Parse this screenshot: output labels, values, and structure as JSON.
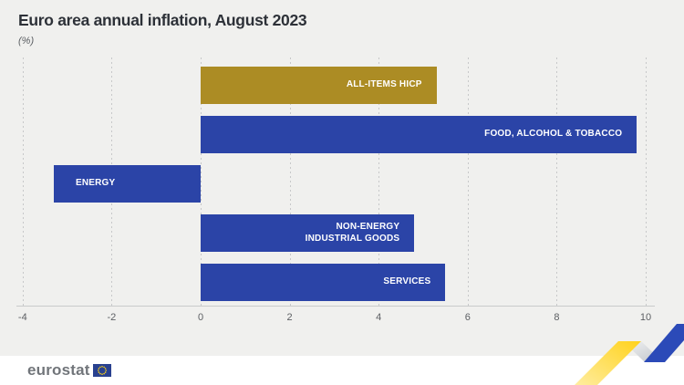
{
  "header": {
    "title": "Euro area annual inflation, August 2023",
    "subtitle": "(%)"
  },
  "chart_data": {
    "type": "bar",
    "orientation": "horizontal",
    "title": "Euro area annual inflation, August 2023",
    "unit_label": "(%)",
    "categories": [
      "ALL-ITEMS HICP",
      "FOOD, ALCOHOL & TOBACCO",
      "ENERGY",
      "NON-ENERGY\nINDUSTRIAL GOODS",
      "SERVICES"
    ],
    "values": [
      5.3,
      9.8,
      -3.3,
      4.8,
      5.5
    ],
    "bar_colors": [
      "#ac8c24",
      "#2b44a7",
      "#2b44a7",
      "#2b44a7",
      "#2b44a7"
    ],
    "xlim": [
      -4,
      10
    ],
    "xticks": [
      -4,
      -2,
      0,
      2,
      4,
      6,
      8,
      10
    ],
    "grid": "vertical-dashed",
    "legend": "none",
    "label_position": "inside-end"
  },
  "footer": {
    "brand": "eurostat"
  },
  "colors": {
    "background": "#f0f0ee",
    "footer_background": "#ffffff",
    "bar_gold": "#ac8c24",
    "bar_blue": "#2b44a7",
    "title_text": "#2d3138",
    "axis_text": "#5c5f63",
    "decoration_yellow": "#ffd21c",
    "decoration_blue": "#2b4ab8",
    "eu_flag_blue": "#29418f",
    "eu_star_yellow": "#ffd617"
  }
}
